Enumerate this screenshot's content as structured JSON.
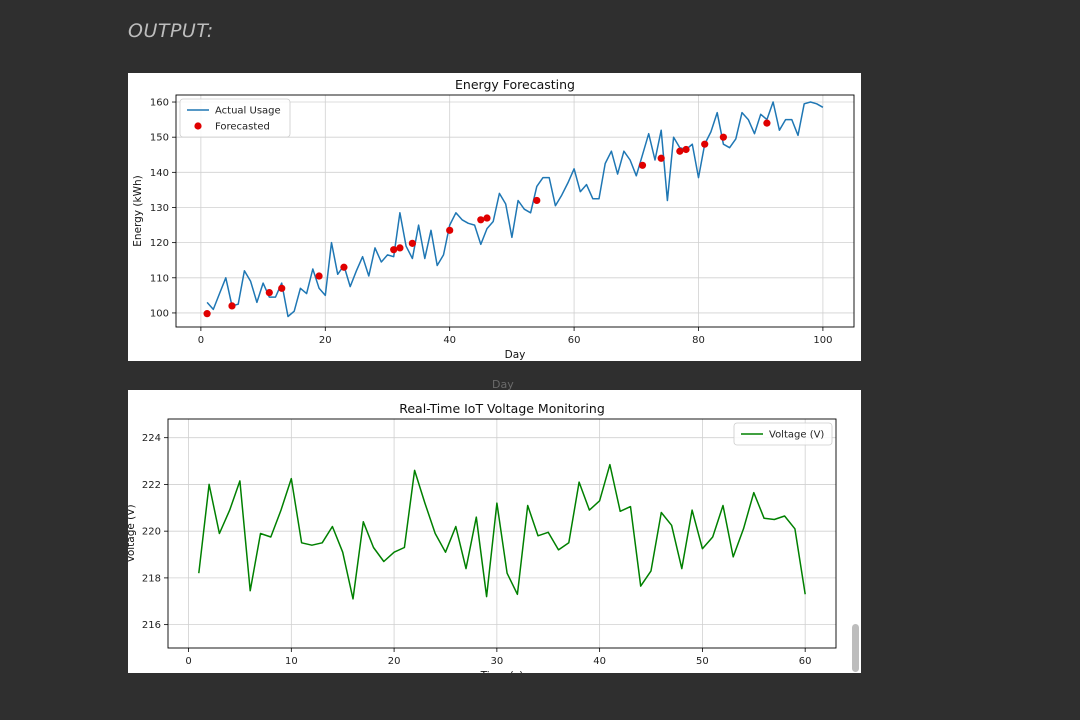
{
  "header": {
    "output_label": "OUTPUT:"
  },
  "peek_label": "Day",
  "chart_data": [
    {
      "type": "line",
      "title": "Energy Forecasting",
      "xlabel": "Day",
      "ylabel": "Energy (kWh)",
      "xlim": [
        -4,
        105
      ],
      "ylim": [
        96,
        162
      ],
      "xticks": [
        0,
        20,
        40,
        60,
        80,
        100
      ],
      "yticks": [
        100,
        110,
        120,
        130,
        140,
        150,
        160
      ],
      "grid": true,
      "legend_position": "top-left",
      "series": [
        {
          "name": "Actual Usage",
          "kind": "line",
          "color": "#1f77b4",
          "x": [
            1,
            2,
            3,
            4,
            5,
            6,
            7,
            8,
            9,
            10,
            11,
            12,
            13,
            14,
            15,
            16,
            17,
            18,
            19,
            20,
            21,
            22,
            23,
            24,
            25,
            26,
            27,
            28,
            29,
            30,
            31,
            32,
            33,
            34,
            35,
            36,
            37,
            38,
            39,
            40,
            41,
            42,
            43,
            44,
            45,
            46,
            47,
            48,
            49,
            50,
            51,
            52,
            53,
            54,
            55,
            56,
            57,
            58,
            59,
            60,
            61,
            62,
            63,
            64,
            65,
            66,
            67,
            68,
            69,
            70,
            71,
            72,
            73,
            74,
            75,
            76,
            77,
            78,
            79,
            80,
            81,
            82,
            83,
            84,
            85,
            86,
            87,
            88,
            89,
            90,
            91,
            92,
            93,
            94,
            95,
            96,
            97,
            98,
            99,
            100
          ],
          "values": [
            103,
            101,
            105.5,
            110,
            102,
            102.5,
            112,
            109,
            103,
            108.5,
            104.5,
            104.5,
            108.5,
            99,
            100.5,
            107,
            105.5,
            112.5,
            107,
            105,
            120,
            111,
            113.5,
            107.5,
            112,
            116,
            110.5,
            118.5,
            114.5,
            116.5,
            116,
            128.5,
            119,
            115.5,
            125,
            115.5,
            123.5,
            113.5,
            116.5,
            125,
            128.5,
            126.5,
            125.5,
            125,
            119.5,
            124,
            126,
            134,
            131,
            121.5,
            132,
            129.5,
            128.5,
            136,
            138.5,
            138.5,
            130.5,
            133.5,
            137,
            141,
            134.5,
            136.5,
            132.5,
            132.5,
            142.5,
            146,
            139.5,
            146,
            143.5,
            139,
            145,
            151,
            143.5,
            152,
            132,
            150,
            147,
            146.5,
            148,
            138.5,
            148,
            151.5,
            157,
            148,
            147,
            149.5,
            157,
            155,
            151,
            156.5,
            155,
            160,
            152,
            155,
            155,
            150.5,
            159.5,
            160,
            159.5,
            158.5
          ]
        },
        {
          "name": "Forecasted",
          "kind": "scatter",
          "color": "#e00000",
          "x": [
            1,
            5,
            11,
            13,
            19,
            23,
            31,
            32,
            34,
            40,
            45,
            46,
            54,
            71,
            74,
            77,
            78,
            81,
            84,
            91
          ],
          "values": [
            99.8,
            102,
            105.8,
            107,
            110.5,
            113,
            118,
            118.5,
            119.8,
            123.5,
            126.5,
            127,
            132,
            142,
            144,
            146,
            146.5,
            148,
            150,
            154
          ]
        }
      ]
    },
    {
      "type": "line",
      "title": "Real-Time IoT Voltage Monitoring",
      "xlabel": "Time (s)",
      "ylabel": "Voltage (V)",
      "xlim": [
        -2,
        63
      ],
      "ylim": [
        215,
        224.8
      ],
      "xticks": [
        0,
        10,
        20,
        30,
        40,
        50,
        60
      ],
      "yticks": [
        216,
        218,
        220,
        222,
        224
      ],
      "grid": true,
      "legend_position": "top-right",
      "series": [
        {
          "name": "Voltage (V)",
          "kind": "line",
          "color": "#008000",
          "x": [
            1,
            2,
            3,
            4,
            5,
            6,
            7,
            8,
            9,
            10,
            11,
            12,
            13,
            14,
            15,
            16,
            17,
            18,
            19,
            20,
            21,
            22,
            23,
            24,
            25,
            26,
            27,
            28,
            29,
            30,
            31,
            32,
            33,
            34,
            35,
            36,
            37,
            38,
            39,
            40,
            41,
            42,
            43,
            44,
            45,
            46,
            47,
            48,
            49,
            50,
            51,
            52,
            53,
            54,
            55,
            56,
            57,
            58,
            59,
            60
          ],
          "values": [
            218.2,
            222,
            219.9,
            220.9,
            222.15,
            217.45,
            219.9,
            219.75,
            220.9,
            222.25,
            219.5,
            219.4,
            219.5,
            220.2,
            219.1,
            217.1,
            220.4,
            219.3,
            218.7,
            219.1,
            219.3,
            222.6,
            221.2,
            219.9,
            219.1,
            220.2,
            218.4,
            220.6,
            217.2,
            221.2,
            218.2,
            217.3,
            221.1,
            219.8,
            219.95,
            219.2,
            219.5,
            222.1,
            220.9,
            221.3,
            222.85,
            220.85,
            221.05,
            217.65,
            218.3,
            220.8,
            220.25,
            218.4,
            220.9,
            219.25,
            219.75,
            221.1,
            218.9,
            220.1,
            221.65,
            220.55,
            220.5,
            220.65,
            220.1,
            217.3
          ]
        }
      ]
    }
  ]
}
